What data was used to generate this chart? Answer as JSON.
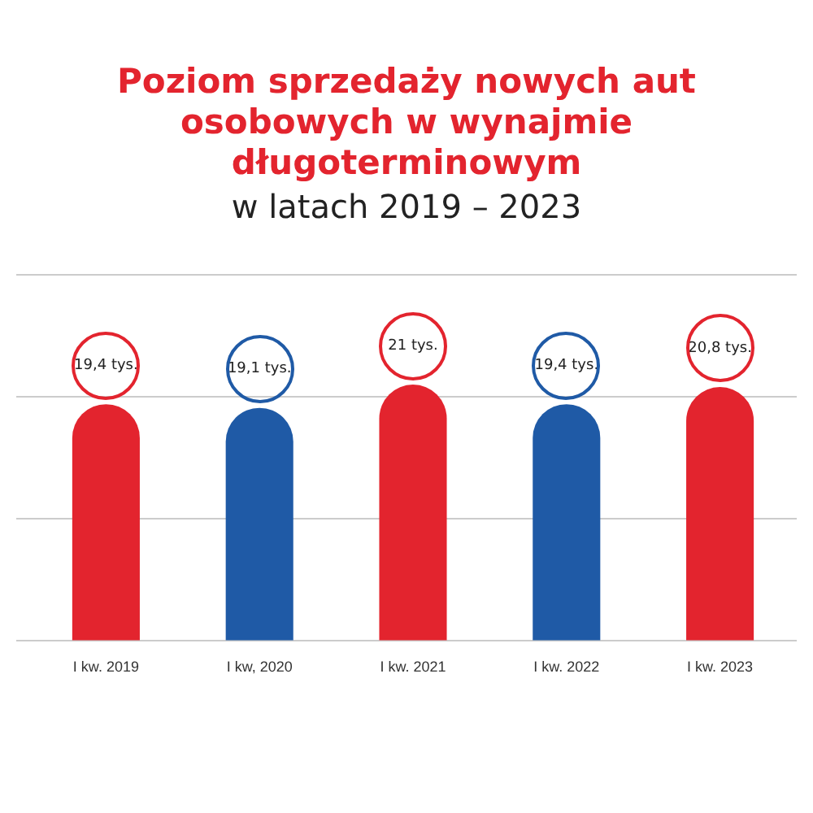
{
  "chart_data": {
    "type": "bar",
    "title": "Poziom sprzedaży nowych aut osobowych w wynajmie długoterminowym",
    "subtitle": "w latach 2019 – 2023",
    "categories": [
      "I kw. 2019",
      "I kw, 2020",
      "I kw. 2021",
      "I kw. 2022",
      "I kw. 2023"
    ],
    "values": [
      19.4,
      19.1,
      21,
      19.4,
      20.8
    ],
    "value_labels": [
      "19,4 tys.",
      "19,1 tys.",
      "21 tys.",
      "19,4 tys.",
      "20,8 tys."
    ],
    "colors": [
      "#e3242e",
      "#1f5aa6",
      "#e3242e",
      "#1f5aa6",
      "#e3242e"
    ],
    "ylim": [
      0,
      30
    ],
    "yticks": [
      {
        "value": 0,
        "label": null
      },
      {
        "value": 10,
        "label": null
      },
      {
        "value": 20,
        "label": null
      },
      {
        "value": 30,
        "label": null
      }
    ],
    "grid": "y",
    "tick_labels": "x"
  }
}
